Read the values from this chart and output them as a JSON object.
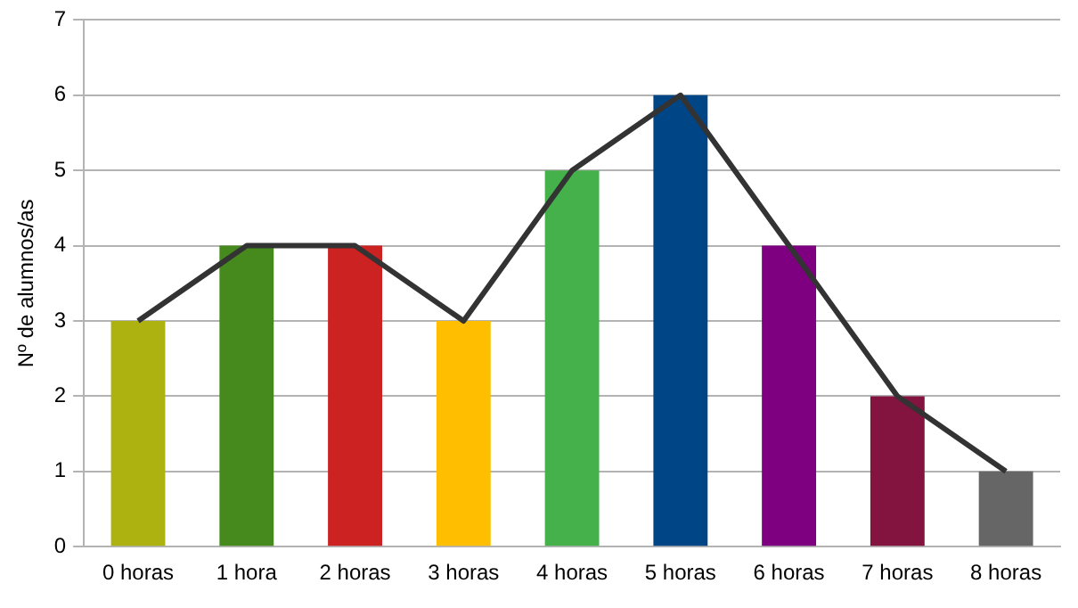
{
  "chart_data": {
    "type": "bar",
    "ylabel": "Nº de alumnos/as",
    "categories": [
      "0 horas",
      "1 hora",
      "2 horas",
      "3 horas",
      "4 horas",
      "5 horas",
      "6 horas",
      "7 horas",
      "8 horas"
    ],
    "series": [
      {
        "type": "bar",
        "colors": [
          "#aeb211",
          "#468a1e",
          "#cc2222",
          "#ffbf00",
          "#44b14a",
          "#004586",
          "#7e0080",
          "#83133f",
          "#666666"
        ],
        "values": [
          3,
          4,
          4,
          3,
          5,
          6,
          4,
          2,
          1
        ]
      },
      {
        "type": "line",
        "color": "#333333",
        "values": [
          3,
          4,
          4,
          3,
          5,
          6,
          4,
          2,
          1
        ]
      }
    ],
    "ylim": [
      0,
      7
    ],
    "yticks": [
      0,
      1,
      2,
      3,
      4,
      5,
      6,
      7
    ],
    "grid": "y",
    "legend": false
  }
}
